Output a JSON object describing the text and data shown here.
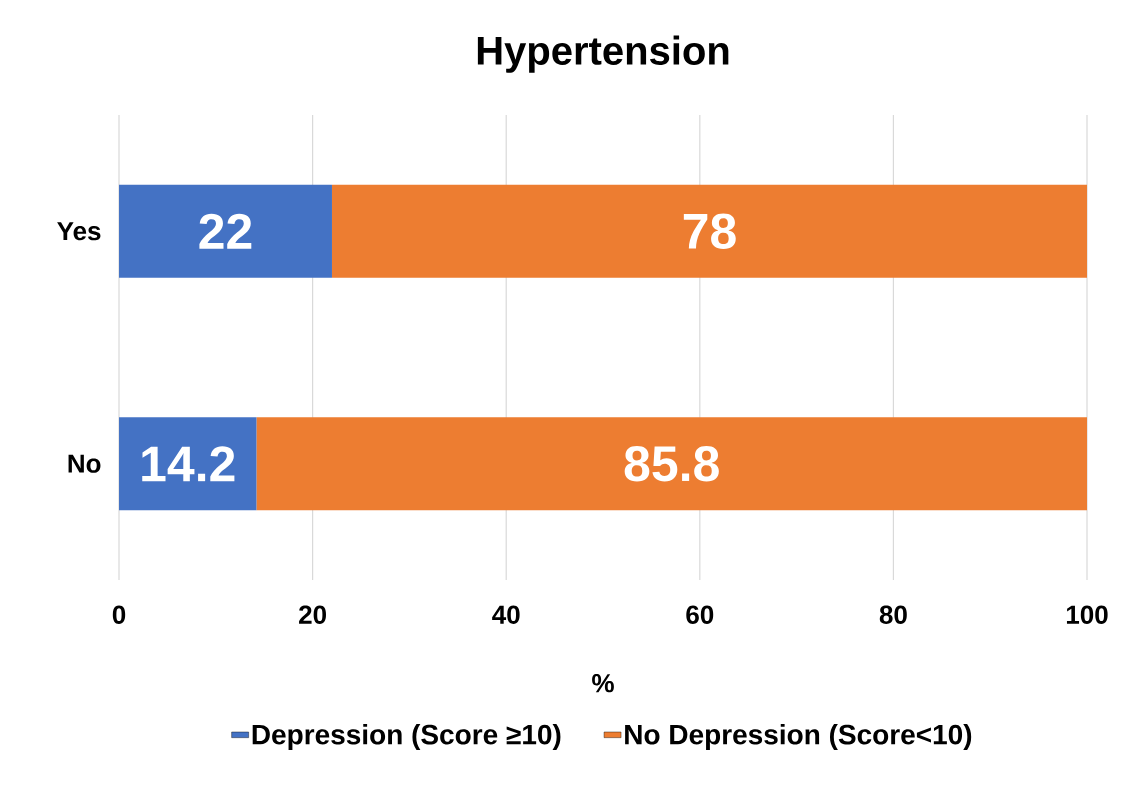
{
  "chart_data": {
    "type": "bar",
    "orientation": "horizontal",
    "stacked": true,
    "title": "Hypertension",
    "xlabel": "%",
    "categories": [
      "Yes",
      "No"
    ],
    "series": [
      {
        "name": "Depression (Score ≥10)",
        "color": "#4472c4",
        "values": [
          22,
          14.2
        ]
      },
      {
        "name": "No Depression (Score<10)",
        "color": "#ed7d31",
        "values": [
          78,
          85.8
        ]
      }
    ],
    "xlim": [
      0,
      100
    ],
    "xticks": [
      0,
      20,
      40,
      60,
      80,
      100
    ],
    "grid": "x",
    "legend": "bottom",
    "data_labels": true
  }
}
